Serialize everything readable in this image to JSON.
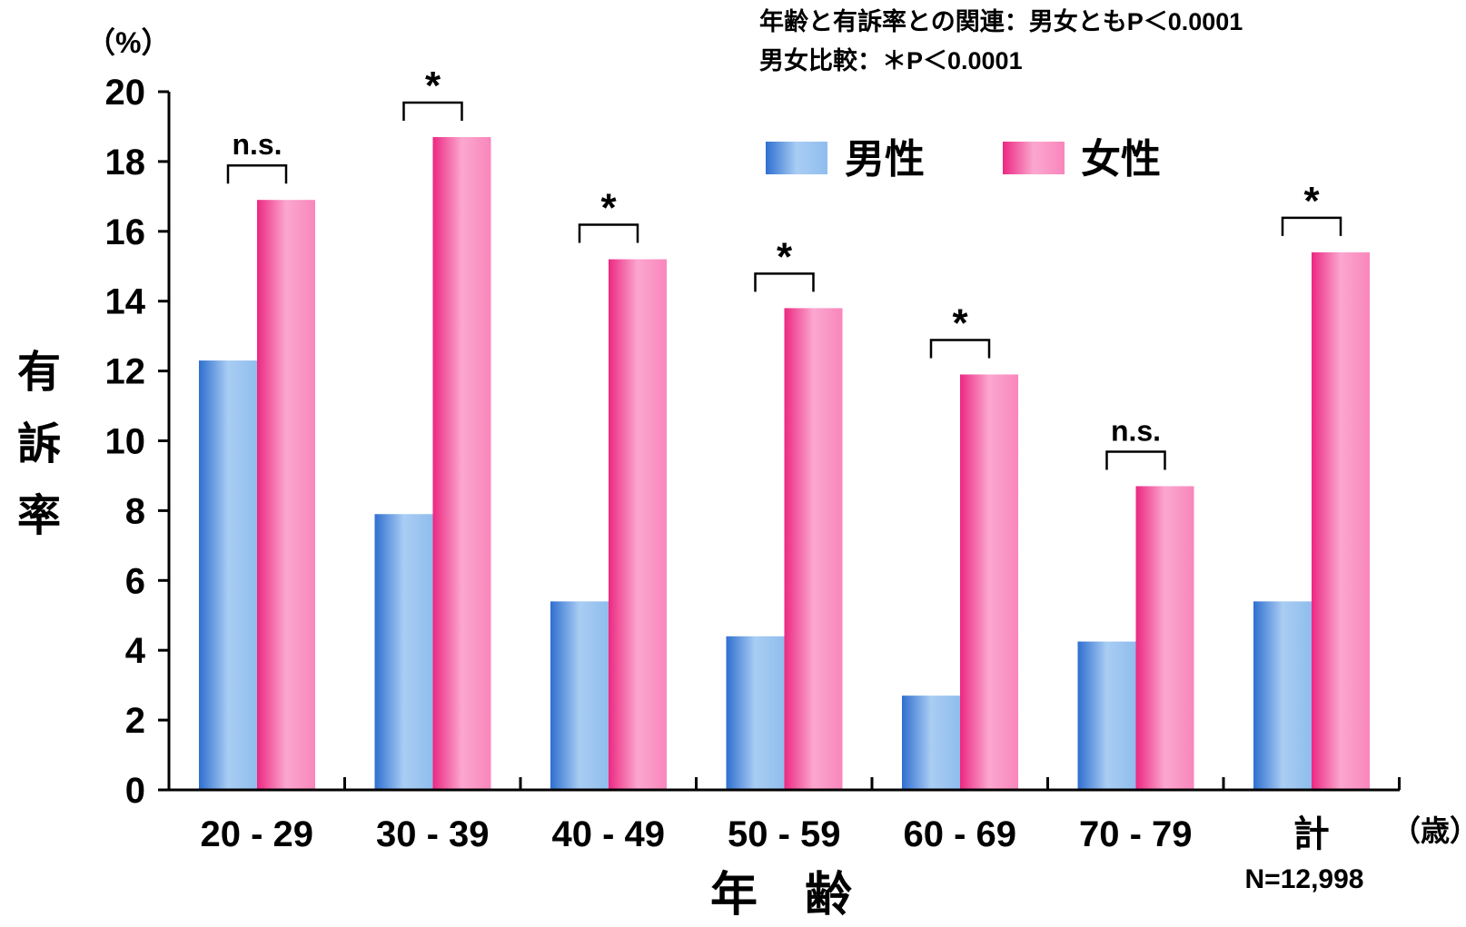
{
  "chart_data": {
    "type": "bar",
    "unit_y": "（%）",
    "unit_x": "（歳）",
    "xlabel": "年　齢",
    "ylabel": "有訴率",
    "ylim": [
      0,
      20
    ],
    "yticks": [
      "0",
      "2",
      "4",
      "6",
      "8",
      "10",
      "12",
      "14",
      "16",
      "18",
      "20"
    ],
    "categories": [
      "20 - 29",
      "30 - 39",
      "40 - 49",
      "50 - 59",
      "60 - 69",
      "70 - 79",
      "計"
    ],
    "series": [
      {
        "name": "男性",
        "values": [
          12.3,
          7.9,
          5.4,
          4.4,
          2.7,
          4.25,
          5.4
        ],
        "color": "#4f8fdc"
      },
      {
        "name": "女性",
        "values": [
          16.9,
          18.7,
          15.2,
          13.8,
          11.9,
          8.7,
          15.4
        ],
        "color": "#ef4a94"
      }
    ],
    "significance": [
      "n.s.",
      "*",
      "*",
      "*",
      "*",
      "n.s.",
      "*"
    ],
    "notes": [
      "年齢と有訴率との関連：男女ともP＜0.0001",
      "男女比較：＊P＜0.0001"
    ],
    "total_n": "N=12,998",
    "legend_position": "top-right",
    "grid": false
  }
}
